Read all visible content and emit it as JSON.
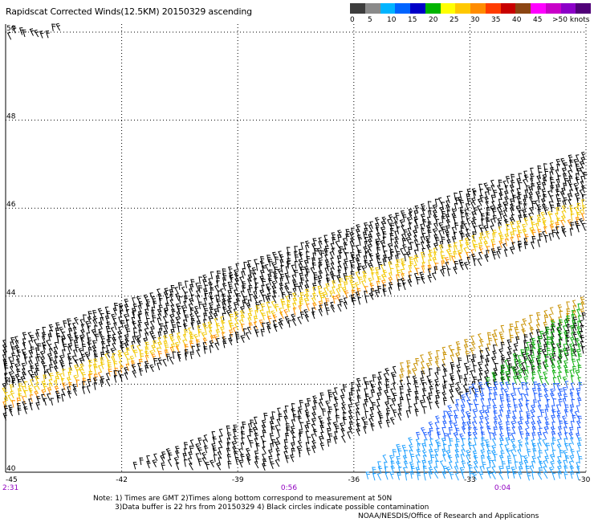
{
  "title": "Rapidscat Corrected Winds(12.5KM) 20150329 ascending",
  "legend": {
    "colors": [
      "#3d3d3d",
      "#8a8a8a",
      "#00b4ff",
      "#0064ff",
      "#0000c8",
      "#00b400",
      "#ffff00",
      "#ffc800",
      "#ff8c00",
      "#ff3c00",
      "#c80000",
      "#8b4513",
      "#ff00ff",
      "#c800c8",
      "#8c00c8",
      "#500078"
    ],
    "labels": [
      "0",
      "5",
      "10",
      "15",
      "20",
      "25",
      "30",
      "35",
      "40",
      "45",
      ">50 knots"
    ]
  },
  "map": {
    "lon_ticks": [
      "-45",
      "-42",
      "-39",
      "-36",
      "-33",
      "-30"
    ],
    "lat_ticks": [
      "40",
      "42",
      "44",
      "46",
      "48",
      "50"
    ],
    "time_labels": [
      "2:31",
      "0:56",
      "0:04"
    ],
    "time_color": "#9000c0"
  },
  "notes": {
    "line1": "Note: 1) Times are GMT 2)Times along bottom correspond to measurement at 50N",
    "line2": "3)Data buffer is 22 hrs from 20150329 4) Black circles indicate possible contamination",
    "credit": "NOAA/NESDIS/Office of Research and Applications"
  }
}
